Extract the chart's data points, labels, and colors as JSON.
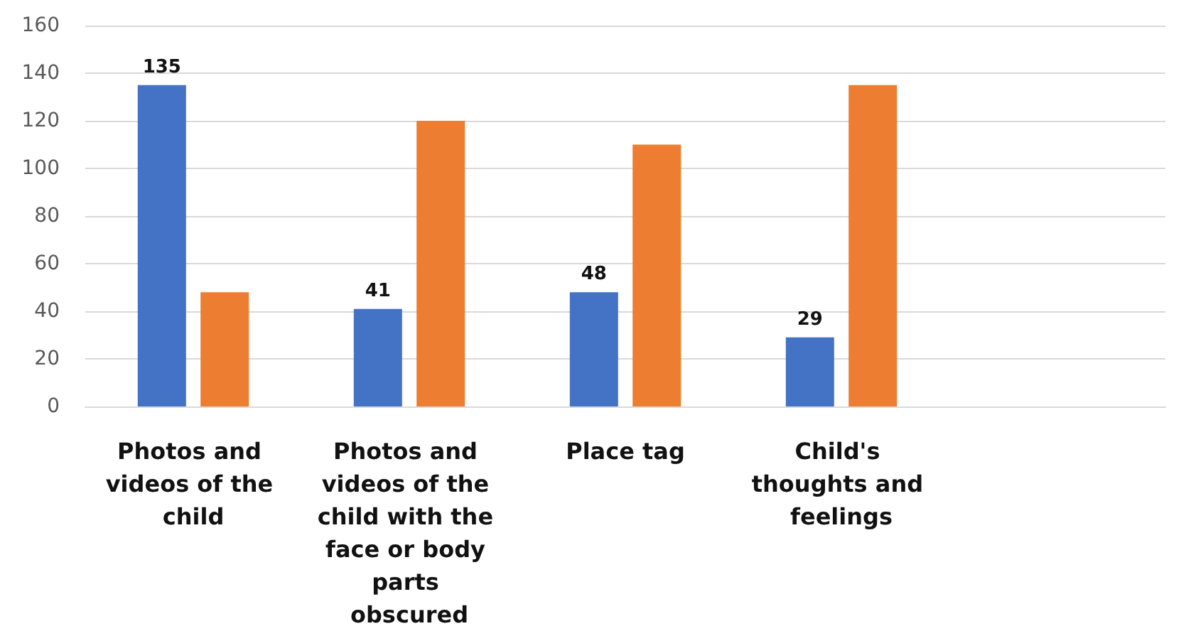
{
  "chart_data": {
    "type": "bar",
    "categories": [
      "Photos and videos of the child",
      "Photos and videos of the child with the face or body parts obscured",
      "Place tag",
      "Child's thoughts and feelings",
      null
    ],
    "series": [
      {
        "color": "#4472c4",
        "values": [
          135,
          41,
          48,
          29,
          null
        ],
        "value_labels": [
          "135",
          "41",
          "48",
          "29",
          null
        ]
      },
      {
        "color": "#ed7d31",
        "values": [
          48,
          120,
          110,
          135,
          null
        ]
      }
    ],
    "ylim": [
      0,
      160
    ],
    "yticks": [
      0,
      20,
      40,
      60,
      80,
      100,
      120,
      140,
      160
    ],
    "grid": "y"
  }
}
